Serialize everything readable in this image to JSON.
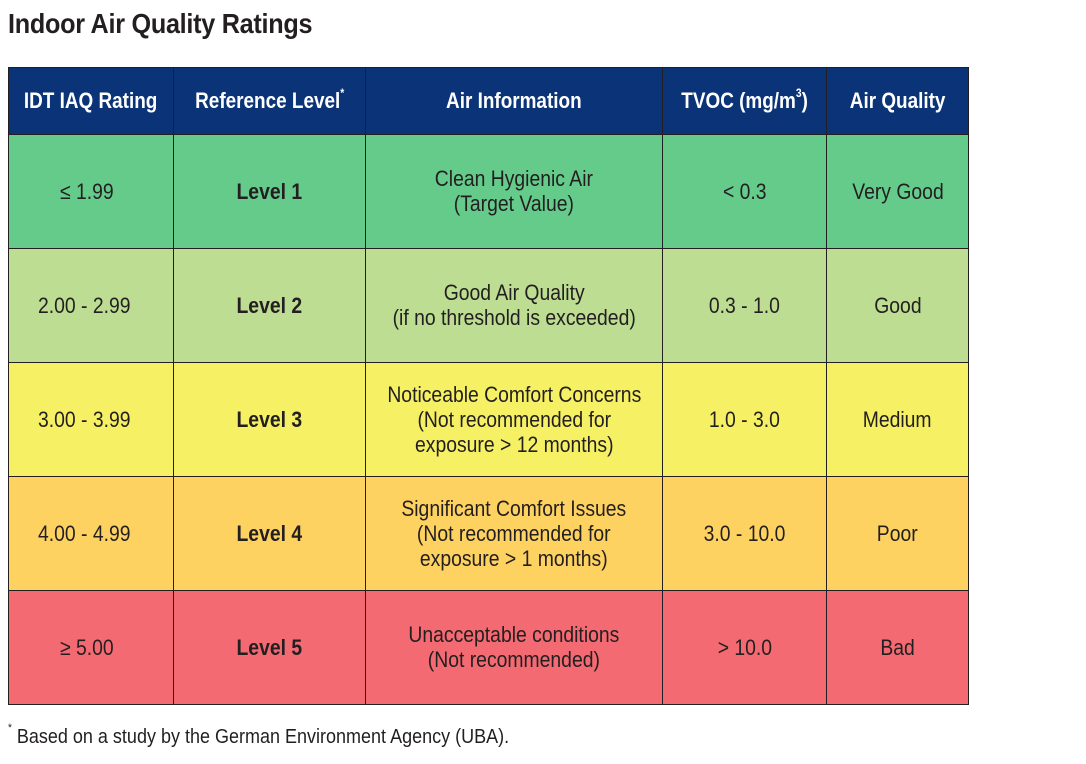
{
  "title": "Indoor Air Quality Ratings",
  "colors": {
    "header": "#0b3478",
    "level1": "#64cb8b",
    "level2": "#bcdd92",
    "level3": "#f6f164",
    "level4": "#fed261",
    "level5": "#f36a72"
  },
  "headers": {
    "rating": "IDT IAQ Rating",
    "reference": "Reference Level",
    "reference_mark": "*",
    "info": "Air Information",
    "tvoc_prefix": "TVOC (mg/m",
    "tvoc_exp": "3",
    "tvoc_suffix": ")",
    "quality": "Air Quality"
  },
  "rows": [
    {
      "rating": "≤ 1.99",
      "level": "Level 1",
      "info": [
        "Clean Hygienic Air",
        "(Target Value)"
      ],
      "tvoc": "< 0.3",
      "quality": "Very Good"
    },
    {
      "rating": "2.00 - 2.99",
      "level": "Level 2",
      "info": [
        "Good Air Quality",
        "(if no threshold is exceeded)"
      ],
      "tvoc": "0.3 - 1.0",
      "quality": "Good"
    },
    {
      "rating": "3.00 - 3.99",
      "level": "Level 3",
      "info": [
        "Noticeable Comfort Concerns",
        "(Not recommended for",
        "exposure > 12 months)"
      ],
      "tvoc": "1.0 - 3.0",
      "quality": "Medium"
    },
    {
      "rating": "4.00 - 4.99",
      "level": "Level 4",
      "info": [
        "Significant Comfort Issues",
        "(Not recommended for",
        "exposure > 1 months)"
      ],
      "tvoc": "3.0 - 10.0",
      "quality": "Poor"
    },
    {
      "rating": "≥ 5.00",
      "level": "Level 5",
      "info": [
        "Unacceptable conditions",
        "(Not recommended)"
      ],
      "tvoc": "> 10.0",
      "quality": "Bad"
    }
  ],
  "footnote": {
    "mark": "*",
    "text": " Based on a study by the German Environment Agency (UBA)."
  }
}
